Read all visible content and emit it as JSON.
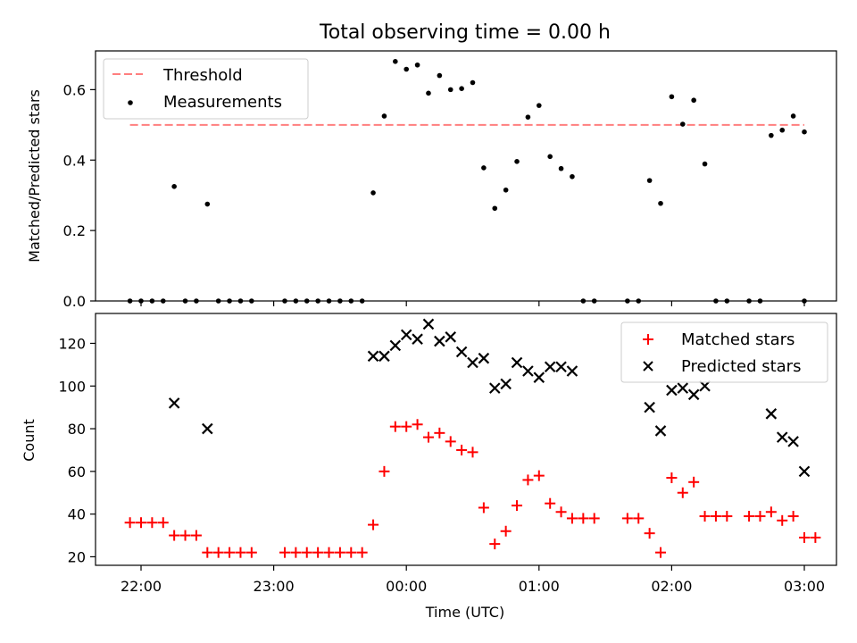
{
  "title": "Total observing time = 0.00 h",
  "colors": {
    "threshold": "#ff7f7f",
    "measurement": "#000000",
    "matched": "#ff0000",
    "predicted": "#000000"
  },
  "chart_data": [
    {
      "type": "scatter",
      "ylabel": "Matched/Predicted stars",
      "ylim": [
        0,
        0.71
      ],
      "yticks": [
        "0.0",
        "0.2",
        "0.4",
        "0.6"
      ],
      "legend": {
        "placement": "top-left",
        "threshold_label": "Threshold",
        "measurements_label": "Measurements"
      },
      "threshold": {
        "value": 0.5,
        "x_from": "21:55",
        "x_to": "03:00"
      },
      "series": [
        {
          "name": "Measurements",
          "points": [
            [
              "21:55",
              0
            ],
            [
              "22:00",
              0
            ],
            [
              "22:05",
              0
            ],
            [
              "22:10",
              0
            ],
            [
              "22:15",
              0.325
            ],
            [
              "22:20",
              0
            ],
            [
              "22:25",
              0
            ],
            [
              "22:30",
              0.275
            ],
            [
              "22:35",
              0
            ],
            [
              "22:40",
              0
            ],
            [
              "22:45",
              0
            ],
            [
              "22:50",
              0
            ],
            [
              "23:05",
              0
            ],
            [
              "23:10",
              0
            ],
            [
              "23:15",
              0
            ],
            [
              "23:20",
              0
            ],
            [
              "23:25",
              0
            ],
            [
              "23:30",
              0
            ],
            [
              "23:35",
              0
            ],
            [
              "23:40",
              0
            ],
            [
              "23:45",
              0.307
            ],
            [
              "23:50",
              0.525
            ],
            [
              "23:55",
              0.68
            ],
            [
              "00:00",
              0.658
            ],
            [
              "00:05",
              0.67
            ],
            [
              "00:10",
              0.59
            ],
            [
              "00:15",
              0.64
            ],
            [
              "00:20",
              0.6
            ],
            [
              "00:25",
              0.603
            ],
            [
              "00:30",
              0.62
            ],
            [
              "00:35",
              0.378
            ],
            [
              "00:40",
              0.263
            ],
            [
              "00:45",
              0.315
            ],
            [
              "00:50",
              0.396
            ],
            [
              "00:55",
              0.522
            ],
            [
              "01:00",
              0.555
            ],
            [
              "01:05",
              0.41
            ],
            [
              "01:10",
              0.376
            ],
            [
              "01:15",
              0.353
            ],
            [
              "01:20",
              0
            ],
            [
              "01:25",
              0
            ],
            [
              "01:40",
              0
            ],
            [
              "01:45",
              0
            ],
            [
              "01:50",
              0.342
            ],
            [
              "01:55",
              0.277
            ],
            [
              "02:00",
              0.58
            ],
            [
              "02:05",
              0.502
            ],
            [
              "02:10",
              0.57
            ],
            [
              "02:15",
              0.389
            ],
            [
              "02:20",
              0
            ],
            [
              "02:25",
              0
            ],
            [
              "02:35",
              0
            ],
            [
              "02:40",
              0
            ],
            [
              "02:45",
              0.47
            ],
            [
              "02:50",
              0.485
            ],
            [
              "02:55",
              0.525
            ],
            [
              "03:00",
              0.48
            ],
            [
              "03:00",
              0
            ]
          ]
        }
      ]
    },
    {
      "type": "scatter",
      "xlabel": "Time (UTC)",
      "ylabel": "Count",
      "ylim": [
        16,
        134
      ],
      "yticks": [
        "20",
        "40",
        "60",
        "80",
        "100",
        "120"
      ],
      "xticks": [
        "22:00",
        "23:00",
        "00:00",
        "01:00",
        "02:00",
        "03:00"
      ],
      "legend": {
        "placement": "top-right"
      },
      "series": [
        {
          "name": "Matched stars",
          "points": [
            [
              "21:55",
              36
            ],
            [
              "22:00",
              36
            ],
            [
              "22:05",
              36
            ],
            [
              "22:10",
              36
            ],
            [
              "22:15",
              30
            ],
            [
              "22:20",
              30
            ],
            [
              "22:25",
              30
            ],
            [
              "22:30",
              22
            ],
            [
              "22:35",
              22
            ],
            [
              "22:40",
              22
            ],
            [
              "22:45",
              22
            ],
            [
              "22:50",
              22
            ],
            [
              "23:05",
              22
            ],
            [
              "23:10",
              22
            ],
            [
              "23:15",
              22
            ],
            [
              "23:20",
              22
            ],
            [
              "23:25",
              22
            ],
            [
              "23:30",
              22
            ],
            [
              "23:35",
              22
            ],
            [
              "23:40",
              22
            ],
            [
              "23:45",
              35
            ],
            [
              "23:50",
              60
            ],
            [
              "23:55",
              81
            ],
            [
              "00:00",
              81
            ],
            [
              "00:05",
              82
            ],
            [
              "00:10",
              76
            ],
            [
              "00:15",
              78
            ],
            [
              "00:20",
              74
            ],
            [
              "00:25",
              70
            ],
            [
              "00:30",
              69
            ],
            [
              "00:35",
              43
            ],
            [
              "00:40",
              26
            ],
            [
              "00:45",
              32
            ],
            [
              "00:50",
              44
            ],
            [
              "00:55",
              56
            ],
            [
              "01:00",
              58
            ],
            [
              "01:05",
              45
            ],
            [
              "01:10",
              41
            ],
            [
              "01:15",
              38
            ],
            [
              "01:20",
              38
            ],
            [
              "01:25",
              38
            ],
            [
              "01:40",
              38
            ],
            [
              "01:45",
              38
            ],
            [
              "01:50",
              31
            ],
            [
              "01:55",
              22
            ],
            [
              "02:00",
              57
            ],
            [
              "02:05",
              50
            ],
            [
              "02:10",
              55
            ],
            [
              "02:15",
              39
            ],
            [
              "02:20",
              39
            ],
            [
              "02:25",
              39
            ],
            [
              "02:35",
              39
            ],
            [
              "02:40",
              39
            ],
            [
              "02:45",
              41
            ],
            [
              "02:50",
              37
            ],
            [
              "02:55",
              39
            ],
            [
              "03:00",
              29
            ],
            [
              "03:05",
              29
            ]
          ]
        },
        {
          "name": "Predicted stars",
          "points": [
            [
              "22:15",
              92
            ],
            [
              "22:30",
              80
            ],
            [
              "23:45",
              114
            ],
            [
              "23:50",
              114
            ],
            [
              "23:55",
              119
            ],
            [
              "00:00",
              124
            ],
            [
              "00:05",
              122
            ],
            [
              "00:10",
              129
            ],
            [
              "00:15",
              121
            ],
            [
              "00:20",
              123
            ],
            [
              "00:25",
              116
            ],
            [
              "00:30",
              111
            ],
            [
              "00:35",
              113
            ],
            [
              "00:40",
              99
            ],
            [
              "00:45",
              101
            ],
            [
              "00:50",
              111
            ],
            [
              "00:55",
              107
            ],
            [
              "01:00",
              104
            ],
            [
              "01:05",
              109
            ],
            [
              "01:10",
              109
            ],
            [
              "01:15",
              107
            ],
            [
              "01:50",
              90
            ],
            [
              "01:55",
              79
            ],
            [
              "02:00",
              98
            ],
            [
              "02:05",
              99
            ],
            [
              "02:10",
              96
            ],
            [
              "02:15",
              100
            ],
            [
              "02:45",
              87
            ],
            [
              "02:50",
              76
            ],
            [
              "02:55",
              74
            ],
            [
              "03:00",
              60
            ]
          ]
        }
      ]
    }
  ]
}
